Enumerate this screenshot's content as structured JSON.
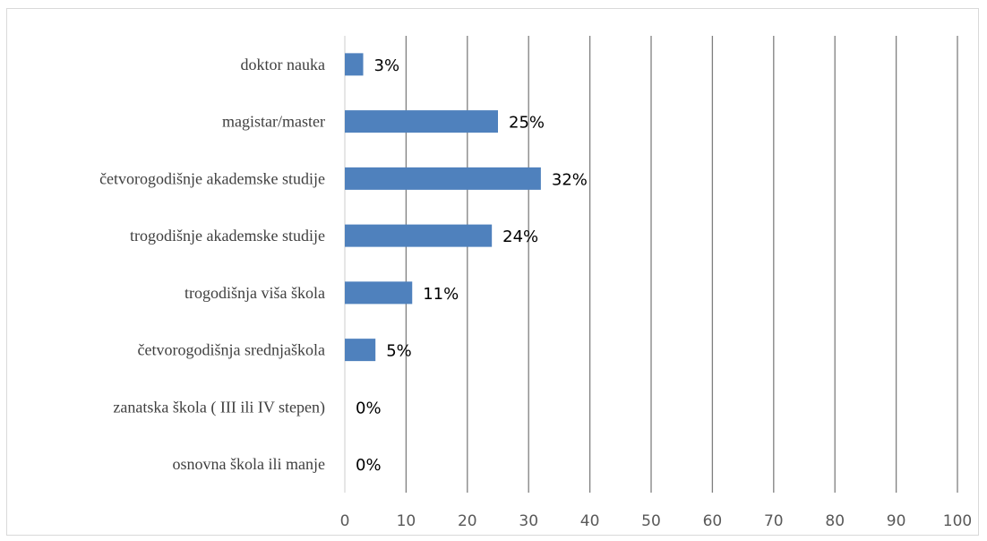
{
  "chart_data": {
    "type": "bar",
    "orientation": "horizontal",
    "categories": [
      "doktor nauka",
      "magistar/master",
      "četvorogodišnje akademske studije",
      "trogodišnje akademske studije",
      "trogodišnja viša škola",
      "četvorogodišnja srednjaškola",
      "zanatska škola ( III ili IV stepen)",
      "osnovna škola ili manje"
    ],
    "values": [
      3,
      25,
      32,
      24,
      11,
      5,
      0,
      0
    ],
    "data_labels": [
      "3%",
      "25%",
      "32%",
      "24%",
      "11%",
      "5%",
      "0%",
      "0%"
    ],
    "xlim": [
      0,
      100
    ],
    "xticks": [
      "0",
      "10",
      "20",
      "30",
      "40",
      "50",
      "60",
      "70",
      "80",
      "90",
      "100"
    ],
    "title": "",
    "xlabel": "",
    "ylabel": "",
    "grid": "vertical",
    "legend": "none",
    "bar_color": "#4f81bd",
    "grid_color": "#7f7f7f"
  }
}
